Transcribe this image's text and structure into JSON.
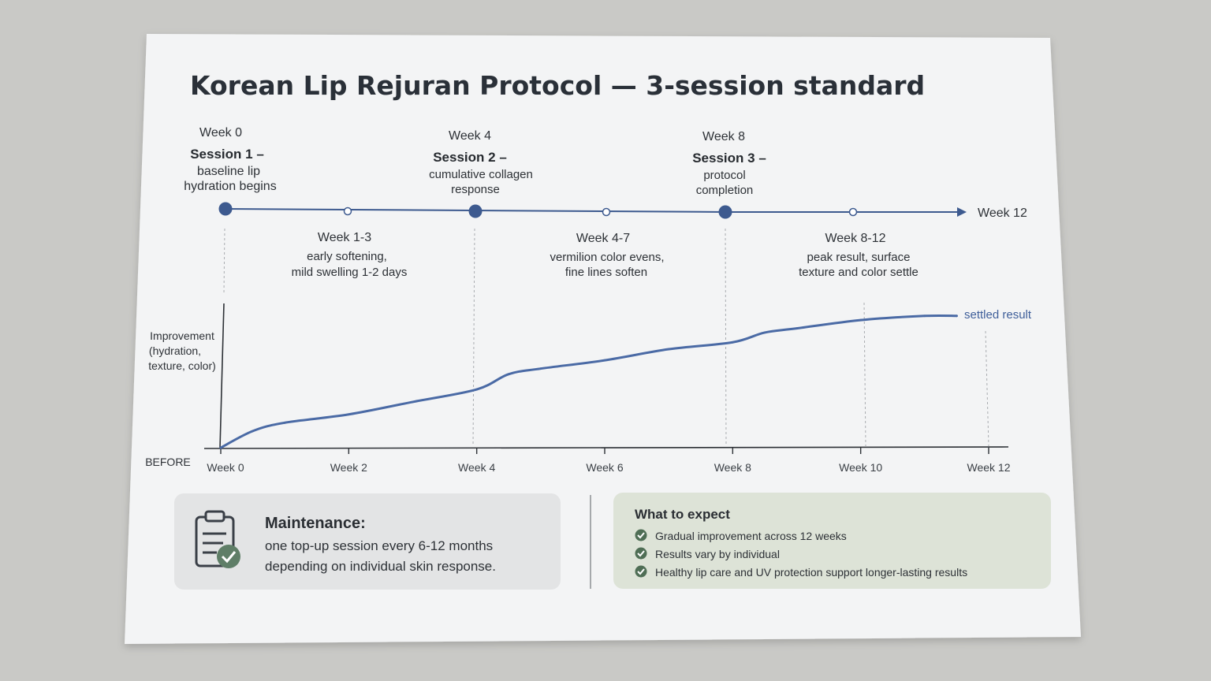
{
  "title": "Korean Lip Rejuran Protocol — 3-session standard",
  "sessions": [
    {
      "week": "Week 0",
      "name": "Session 1 –",
      "desc": [
        "baseline lip",
        "hydration begins"
      ]
    },
    {
      "week": "Week 4",
      "name": "Session 2 –",
      "desc": [
        "cumulative collagen",
        "response"
      ]
    },
    {
      "week": "Week 8",
      "name": "Session 3 –",
      "desc": [
        "protocol",
        "completion"
      ]
    }
  ],
  "timeline_end_label": "Week 12",
  "phases": [
    {
      "range": "Week 1-3",
      "desc": [
        "early softening,",
        "mild swelling 1-2 days"
      ]
    },
    {
      "range": "Week 4-7",
      "desc": [
        "vermilion color evens,",
        "fine lines soften"
      ]
    },
    {
      "range": "Week 8-12",
      "desc": [
        "peak result, surface",
        "texture and color settle"
      ]
    }
  ],
  "chart_data": {
    "type": "line",
    "ylabel": [
      "Improvement",
      "(hydration,",
      "texture, color)"
    ],
    "y_origin_label": "BEFORE",
    "x_ticks": [
      "Week 0",
      "Week 2",
      "Week 4",
      "Week 6",
      "Week 8",
      "Week 10",
      "Week 12"
    ],
    "xlim": [
      0,
      12
    ],
    "ylim": [
      0,
      100
    ],
    "series": [
      {
        "name": "",
        "color": "#4a6aa5",
        "x": [
          0,
          0.5,
          1,
          2,
          3,
          4,
          4.5,
          5,
          6,
          7,
          8,
          8.5,
          9,
          10,
          11,
          11.5
        ],
        "y": [
          0,
          12,
          18,
          24,
          33,
          42,
          53,
          57,
          63,
          71,
          76,
          83,
          86,
          92,
          95,
          95
        ]
      }
    ],
    "end_annotation": "settled result"
  },
  "maintenance": {
    "title": "Maintenance:",
    "lines": [
      "one top-up session every 6-12 months",
      "depending on individual skin response."
    ],
    "icon": "clipboard-check-icon"
  },
  "what_to_expect": {
    "title": "What to expect",
    "items": [
      "Gradual improvement across 12 weeks",
      "Results vary by individual",
      "Healthy lip care and UV protection support longer-lasting results"
    ],
    "icon": "check-circle-icon"
  },
  "colors": {
    "accent": "#3d5a8f",
    "curve": "#4a6aa5",
    "check": "#4f6e55"
  }
}
